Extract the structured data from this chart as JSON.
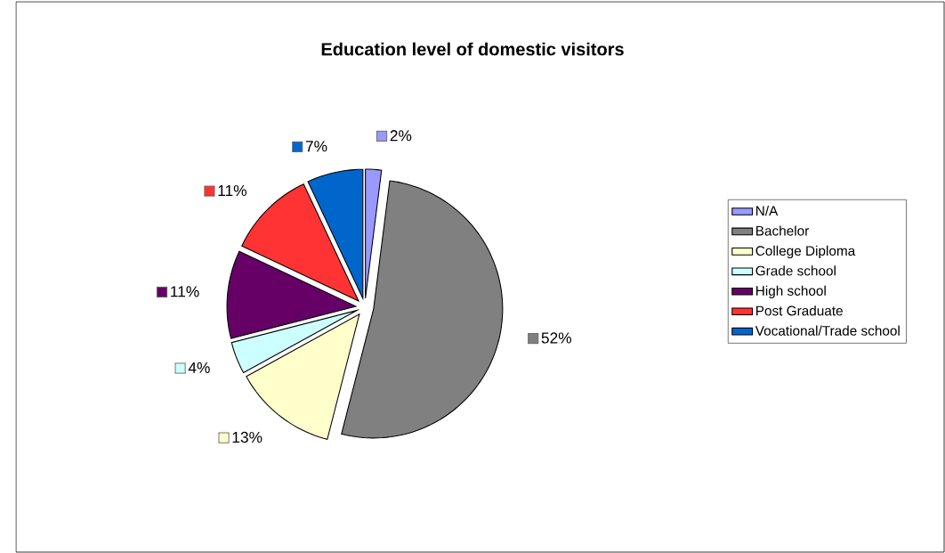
{
  "chart_data": {
    "type": "pie",
    "title": "Education level of domestic  visitors",
    "categories": [
      "N/A",
      "Bachelor",
      "College Diploma",
      "Grade school",
      "High school",
      "Post Graduate",
      "Vocational/Trade school"
    ],
    "values": [
      2,
      52,
      13,
      4,
      11,
      11,
      7
    ],
    "colors": [
      "#9999ff",
      "#808080",
      "#ffffcc",
      "#ccffff",
      "#660066",
      "#ff3333",
      "#0066cc"
    ],
    "value_labels": [
      "2%",
      "52%",
      "13%",
      "4%",
      "11%",
      "11%",
      "7%"
    ],
    "legend": "right"
  }
}
